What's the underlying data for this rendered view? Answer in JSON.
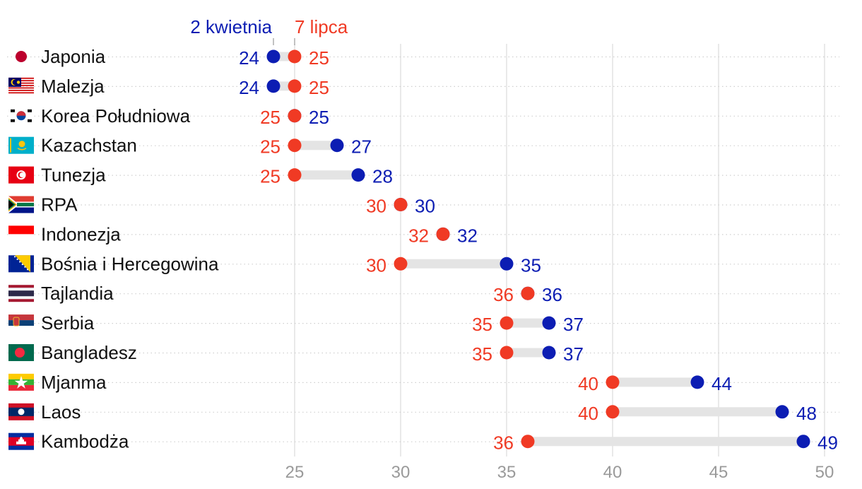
{
  "chart_data": {
    "type": "dumbbell",
    "title": "",
    "xlabel": "",
    "ylabel": "",
    "xlim": [
      22.5,
      50.5
    ],
    "x_ticks": [
      25,
      30,
      35,
      40,
      45,
      50
    ],
    "series": [
      {
        "name": "2 kwietnia",
        "color": "#0c1db3"
      },
      {
        "name": "7 lipca",
        "color": "#f03a24"
      }
    ],
    "rows": [
      {
        "country": "Japonia",
        "flag": "japan-flag",
        "april": 24,
        "july": 25
      },
      {
        "country": "Malezja",
        "flag": "malaysia-flag",
        "april": 24,
        "july": 25
      },
      {
        "country": "Korea Południowa",
        "flag": "south-korea-flag",
        "april": 25,
        "july": 25
      },
      {
        "country": "Kazachstan",
        "flag": "kazakhstan-flag",
        "april": 27,
        "july": 25
      },
      {
        "country": "Tunezja",
        "flag": "tunisia-flag",
        "april": 28,
        "july": 25
      },
      {
        "country": "RPA",
        "flag": "south-africa-flag",
        "april": 30,
        "july": 30
      },
      {
        "country": "Indonezja",
        "flag": "indonesia-flag",
        "april": 32,
        "july": 32
      },
      {
        "country": "Bośnia i Hercegowina",
        "flag": "bosnia-flag",
        "april": 35,
        "july": 30
      },
      {
        "country": "Tajlandia",
        "flag": "thailand-flag",
        "april": 36,
        "july": 36
      },
      {
        "country": "Serbia",
        "flag": "serbia-flag",
        "april": 37,
        "july": 35
      },
      {
        "country": "Bangladesz",
        "flag": "bangladesh-flag",
        "april": 37,
        "july": 35
      },
      {
        "country": "Mjanma",
        "flag": "myanmar-flag",
        "april": 44,
        "july": 40
      },
      {
        "country": "Laos",
        "flag": "laos-flag",
        "april": 48,
        "july": 40
      },
      {
        "country": "Kambodża",
        "flag": "cambodia-flag",
        "april": 49,
        "july": 36
      }
    ]
  }
}
